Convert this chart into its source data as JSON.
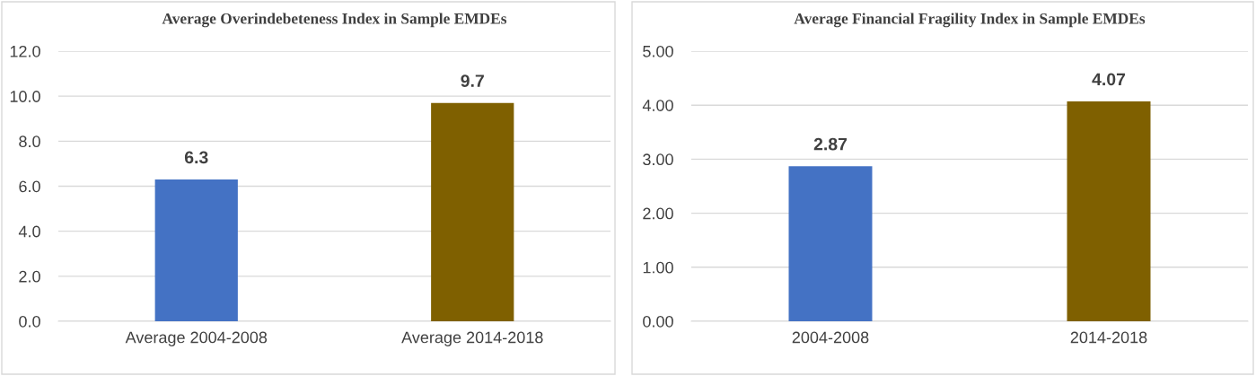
{
  "chart_data": [
    {
      "type": "bar",
      "title": "Average Overindebeteness Index in Sample EMDEs",
      "categories": [
        "Average 2004-2008",
        "Average 2014-2018"
      ],
      "values": [
        6.3,
        9.7
      ],
      "colors": [
        "#4472c4",
        "#7f6000"
      ],
      "ylim": [
        0,
        12
      ],
      "yticks": [
        {
          "value": 0,
          "label": "0.0"
        },
        {
          "value": 2,
          "label": "2.0"
        },
        {
          "value": 4,
          "label": "4.0"
        },
        {
          "value": 6,
          "label": "6.0"
        },
        {
          "value": 8,
          "label": "8.0"
        },
        {
          "value": 10,
          "label": "10.0"
        },
        {
          "value": 12,
          "label": "12.0"
        }
      ],
      "grid": "y",
      "data_labels": true,
      "legend": false
    },
    {
      "type": "bar",
      "title": "Average Financial Fragility Index in Sample EMDEs",
      "categories": [
        "2004-2008",
        "2014-2018"
      ],
      "values": [
        2.87,
        4.07
      ],
      "colors": [
        "#4472c4",
        "#7f6000"
      ],
      "ylim": [
        0,
        5
      ],
      "yticks": [
        {
          "value": 0,
          "label": "0.00"
        },
        {
          "value": 1,
          "label": "1.00"
        },
        {
          "value": 2,
          "label": "2.00"
        },
        {
          "value": 3,
          "label": "3.00"
        },
        {
          "value": 4,
          "label": "4.00"
        },
        {
          "value": 5,
          "label": "5.00"
        }
      ],
      "grid": "y",
      "data_labels": true,
      "legend": false
    }
  ]
}
